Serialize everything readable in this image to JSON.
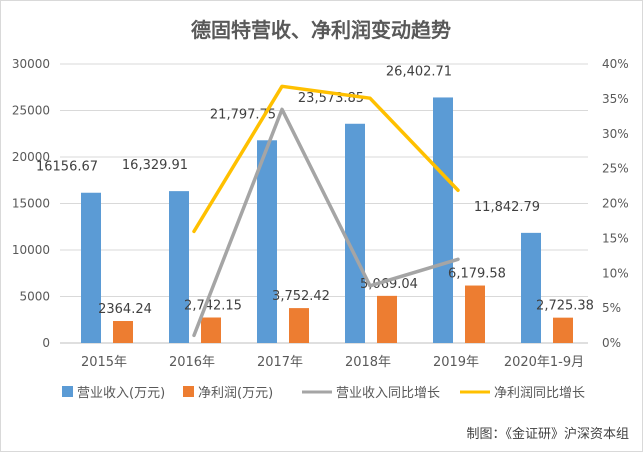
{
  "chart_data": {
    "type": "bar",
    "title": "德固特营收、净利润变动趋势",
    "categories": [
      "2015年",
      "2016年",
      "2017年",
      "2018年",
      "2019年",
      "2020年1-9月"
    ],
    "y_left": {
      "range": [
        0,
        30000
      ],
      "ticks": [
        "0",
        "5000",
        "10000",
        "15000",
        "20000",
        "25000",
        "30000"
      ]
    },
    "y_right": {
      "range": [
        0,
        40
      ],
      "unit": "%",
      "ticks": [
        "0%",
        "5%",
        "10%",
        "15%",
        "20%",
        "25%",
        "30%",
        "35%",
        "40%"
      ]
    },
    "grid": true,
    "legend_position": "bottom",
    "series": [
      {
        "name": "营业收入(万元)",
        "kind": "bar",
        "axis": "left",
        "color": "#5b9bd5",
        "values": [
          16156.67,
          16329.91,
          21797.75,
          23573.85,
          26402.71,
          11842.79
        ],
        "labels": [
          "16156.67",
          "16,329.91",
          "21,797.75",
          "23,573.85",
          "26,402.71",
          "11,842.79"
        ]
      },
      {
        "name": "净利润(万元)",
        "kind": "bar",
        "axis": "left",
        "color": "#ed7d31",
        "values": [
          2364.24,
          2742.15,
          3752.42,
          5069.04,
          6179.58,
          2725.38
        ],
        "labels": [
          "2364.24",
          "2,742.15",
          "3,752.42",
          "5,069.04",
          "6,179.58",
          "2,725.38"
        ]
      },
      {
        "name": "营业收入同比增长",
        "kind": "line",
        "axis": "right",
        "color": "#a5a5a5",
        "values": [
          null,
          1.1,
          33.5,
          8.2,
          12.0,
          null
        ]
      },
      {
        "name": "净利润同比增长",
        "kind": "line",
        "axis": "right",
        "color": "#ffc000",
        "values": [
          null,
          16.0,
          36.8,
          35.1,
          21.9,
          null
        ]
      }
    ]
  },
  "credit": "制图：《金证研》沪深资本组"
}
